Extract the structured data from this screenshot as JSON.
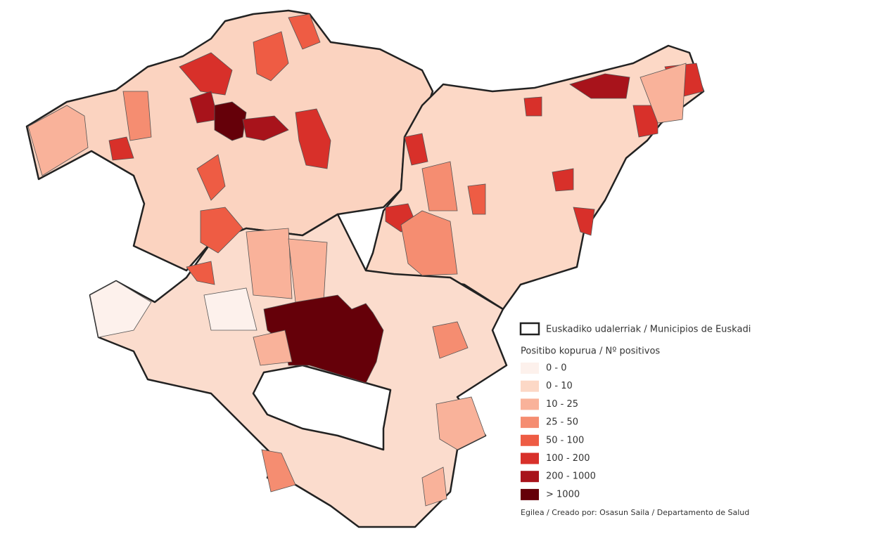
{
  "legend": {
    "boundary_label": "Euskadiko udalerriak / Municipios de Euskadi",
    "title": "Positibo kopurua / Nº positivos",
    "classes": [
      {
        "label": "0 - 0",
        "color": "#fdf1ec"
      },
      {
        "label": "0 - 10",
        "color": "#fcd8c6"
      },
      {
        "label": "10 - 25",
        "color": "#f9b29a"
      },
      {
        "label": "25 - 50",
        "color": "#f58d71"
      },
      {
        "label": "50 - 100",
        "color": "#ee5c44"
      },
      {
        "label": "100 - 200",
        "color": "#d8302a"
      },
      {
        "label": "200 - 1000",
        "color": "#a8131b"
      },
      {
        "label": "> 1000",
        "color": "#650009"
      }
    ]
  },
  "credit": "Egilea / Creado por: Osasun Saila / Departamento de Salud"
}
